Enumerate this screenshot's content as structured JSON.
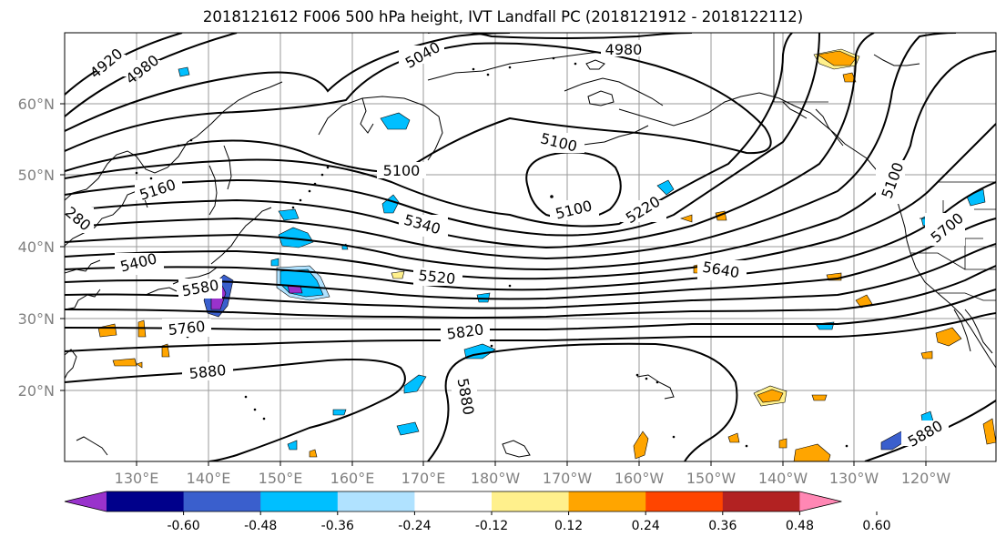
{
  "title": "2018121612 F006 500 hPa height, IVT Landfall PC (2018121912 - 2018122112)",
  "lat_labels": [
    "60°N",
    "50°N",
    "40°N",
    "30°N",
    "20°N"
  ],
  "lon_labels": [
    "130°E",
    "140°E",
    "150°E",
    "160°E",
    "170°E",
    "180°W",
    "170°W",
    "160°W",
    "150°W",
    "140°W",
    "130°W",
    "120°W"
  ],
  "contour_labels": [
    "4920",
    "4980",
    "5040",
    "4980",
    "5100",
    "5100",
    "5100",
    "5160",
    "280",
    "5220",
    "5340",
    "5400",
    "5520",
    "5580",
    "5640",
    "5700",
    "5760",
    "5820",
    "5880",
    "5880",
    "5880",
    "5100"
  ],
  "colorbar": {
    "ticks": [
      "-0.60",
      "-0.48",
      "-0.36",
      "-0.24",
      "-0.12",
      "0.12",
      "0.24",
      "0.36",
      "0.48",
      "0.60"
    ],
    "colors": [
      "#9932cc",
      "#00008b",
      "#3a5fcd",
      "#00bfff",
      "#b0e2ff",
      "#ffffff",
      "#fff08c",
      "#ffa500",
      "#ff4500",
      "#b22222",
      "#ff87b4"
    ]
  },
  "colors": {
    "positive_fill": "#ffa500",
    "positive_light": "#fff08c",
    "negative_fill": "#00bfff",
    "negative_light": "#b0e2ff",
    "negative_strong": "#3a5fcd",
    "negative_core": "#9932cc",
    "contour": "#000000",
    "grid": "#9a9a9a"
  }
}
